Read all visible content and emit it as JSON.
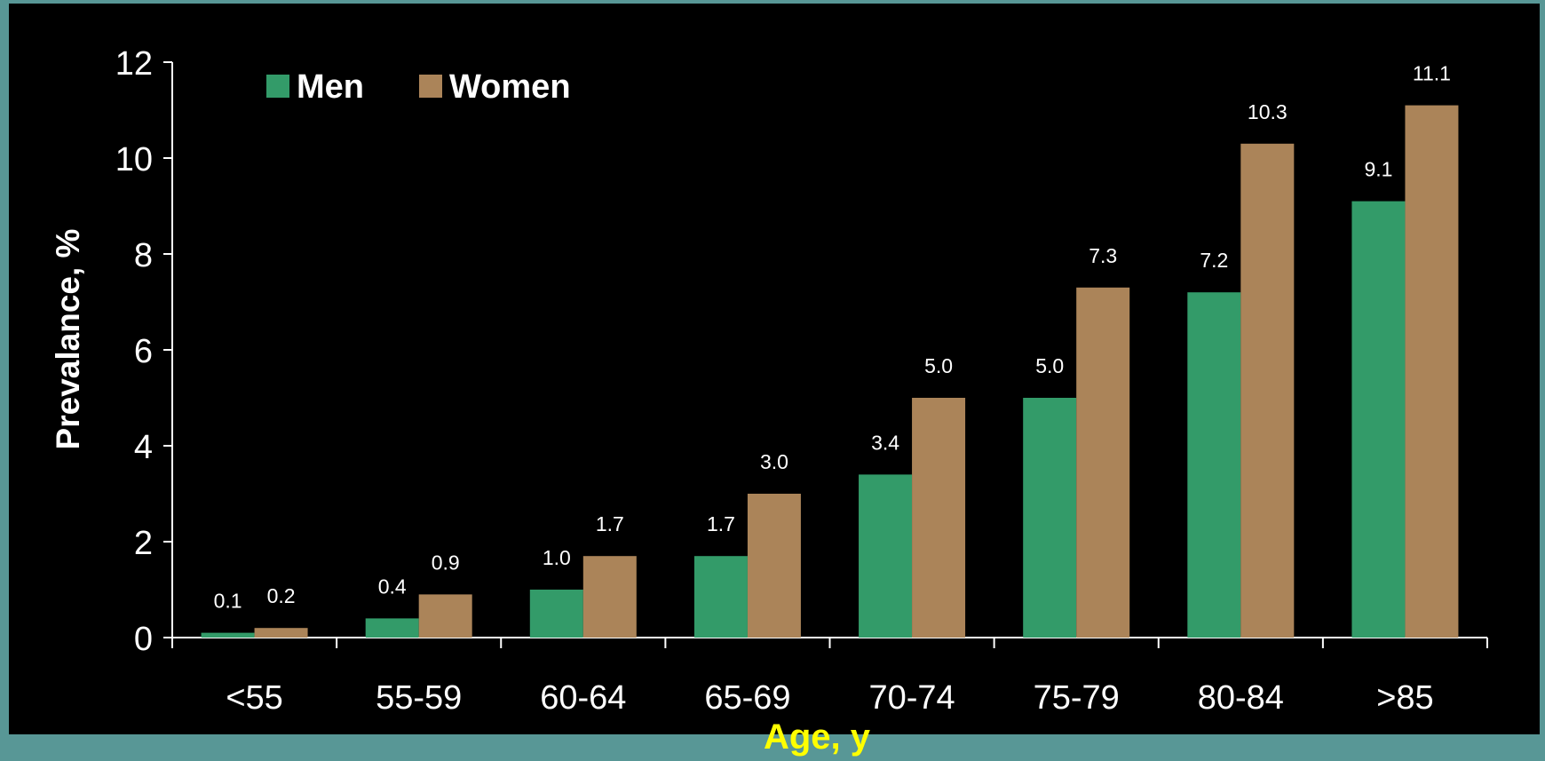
{
  "colors": {
    "men": "#339b69",
    "women": "#ab8459",
    "axis": "#ffffff",
    "text": "#ffffff",
    "xlabel": "#ffff00"
  },
  "chart_data": {
    "type": "bar",
    "categories": [
      "<55",
      "55-59",
      "60-64",
      "65-69",
      "70-74",
      "75-79",
      "80-84",
      ">85"
    ],
    "series": [
      {
        "name": "Men",
        "values": [
          0.1,
          0.4,
          1.0,
          1.7,
          3.4,
          5.0,
          7.2,
          9.1
        ],
        "labels": [
          "0.1",
          "0.4",
          "1.0",
          "1.7",
          "3.4",
          "5.0",
          "7.2",
          "9.1"
        ]
      },
      {
        "name": "Women",
        "values": [
          0.2,
          0.9,
          1.7,
          3.0,
          5.0,
          7.3,
          10.3,
          11.1
        ],
        "labels": [
          "0.2",
          "0.9",
          "1.7",
          "3.0",
          "5.0",
          "7.3",
          "10.3",
          "11.1"
        ]
      }
    ],
    "xlabel": "Age, y",
    "ylabel": "Prevalance, %",
    "ylim": [
      0,
      12
    ],
    "yticks": [
      "0",
      "2",
      "4",
      "6",
      "8",
      "10",
      "12"
    ],
    "legend": "top-left",
    "grid": false
  }
}
